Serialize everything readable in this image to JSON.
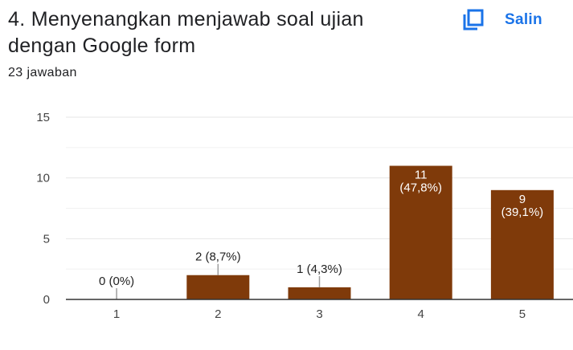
{
  "question": {
    "title": "4. Menyenangkan menjawab soal ujian dengan Google form",
    "copy_label": "Salin"
  },
  "response_count": "23 jawaban",
  "colors": {
    "bar": "#7f3a0a",
    "accent": "#1a73e8",
    "grid": "#e6e6e6",
    "axis": "#333333"
  },
  "icons": {
    "copy": "copy-icon"
  },
  "chart_data": {
    "type": "bar",
    "categories": [
      "1",
      "2",
      "3",
      "4",
      "5"
    ],
    "values": [
      0,
      2,
      1,
      11,
      9
    ],
    "data_labels": [
      "0 (0%)",
      "2 (8,7%)",
      "1 (4,3%)",
      "11\n(47,8%)",
      "9\n(39,1%)"
    ],
    "ylim": [
      0,
      15
    ],
    "yticks": [
      0,
      5,
      10,
      15
    ],
    "grid": true
  }
}
